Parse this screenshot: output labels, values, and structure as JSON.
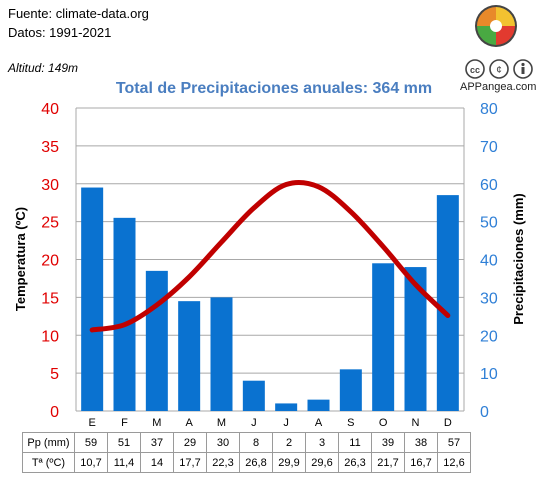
{
  "header": {
    "source": "Fuente: climate-data.org",
    "period": "Datos: 1991-2021",
    "altitude": "Altitud: 149m",
    "site": "APPangea.com"
  },
  "colors": {
    "bars": "#0a72d0",
    "line": "#c00000",
    "left_axis": "#e00000",
    "right_axis": "#2f7fd6",
    "title": "#4a7ec0"
  },
  "chart_data": {
    "type": "bar",
    "title": "Total de Precipitaciones anuales: 364 mm",
    "categories": [
      "E",
      "F",
      "M",
      "A",
      "M",
      "J",
      "J",
      "A",
      "S",
      "O",
      "N",
      "D"
    ],
    "series": [
      {
        "name": "Pp (mm)",
        "type": "bar",
        "axis": "right",
        "values": [
          59,
          51,
          37,
          29,
          30,
          8,
          2,
          3,
          11,
          39,
          38,
          57
        ]
      },
      {
        "name": "Tª (ºC)",
        "type": "line",
        "axis": "left",
        "values": [
          10.7,
          11.4,
          14,
          17.7,
          22.3,
          26.8,
          29.9,
          29.6,
          26.3,
          21.7,
          16.7,
          12.6
        ]
      }
    ],
    "ylabel_left": "Temperatura (ºC)",
    "ylabel_right": "Precipitaciones (mm)",
    "ylim_left": [
      0,
      40
    ],
    "ylim_right": [
      0,
      80
    ],
    "yticks_left": [
      0,
      5,
      10,
      15,
      20,
      25,
      30,
      35,
      40
    ],
    "yticks_right": [
      0,
      10,
      20,
      30,
      40,
      50,
      60,
      70,
      80
    ],
    "grid": true
  },
  "table": {
    "precip_label": "Pp (mm)",
    "precip": [
      "59",
      "51",
      "37",
      "29",
      "30",
      "8",
      "2",
      "3",
      "11",
      "39",
      "38",
      "57"
    ],
    "temp_label": "Tª (ºC)",
    "temp": [
      "10,7",
      "11,4",
      "14",
      "17,7",
      "22,3",
      "26,8",
      "29,9",
      "29,6",
      "26,3",
      "21,7",
      "16,7",
      "12,6"
    ]
  }
}
